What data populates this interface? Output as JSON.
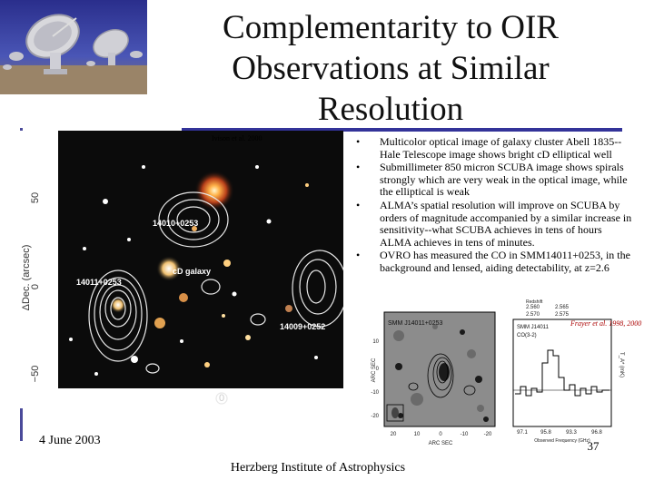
{
  "slide": {
    "title_lines": [
      "Complementarity to OIR",
      "Observations at Similar",
      "Resolution"
    ],
    "bullets": [
      "Multicolor optical image of galaxy cluster Abell 1835--Hale Telescope image shows bright cD elliptical well",
      "Submillimeter 850 micron SCUBA image shows spirals strongly which are very weak in the optical image, while the elliptical is weak",
      "ALMA’s spatial resolution will improve on SCUBA by orders of magnitude accompanied by a similar increase in sensitivity--what SCUBA achieves in tens of hours ALMA achieves in tens of minutes.",
      "OVRO has measured the CO in SMM14011+0253, in the background and lensed, aiding detectability, at z=2.6"
    ],
    "bullet_glyph": "•",
    "date": "4 June 2003",
    "footer": "Herzberg Institute of Astrophysics",
    "page_number": "37",
    "credit_left": "Ivison et al. 2000",
    "credit_right": "Frayer et al. 1998, 2000"
  },
  "left_image": {
    "y_axis_label": "ΔDec. (arcsec)",
    "y_ticks": [
      "50",
      "0",
      "−50"
    ],
    "x_ticks": [
      "0"
    ],
    "labels": [
      "14010+0253",
      "cD galaxy",
      "14011+0253",
      "14009+0252"
    ]
  },
  "right_image": {
    "ra_ticks": [
      "2.560",
      "2.565",
      "2.570",
      "2.575"
    ],
    "panel_label": "SMM J14011+0253",
    "y_axis_label": "ARC SEC",
    "x_axis_label": "ARC SEC",
    "y_ticks": [
      "10",
      "0",
      "-10",
      "-20"
    ],
    "x_ticks": [
      "20",
      "10",
      "0",
      "-10",
      "-20"
    ],
    "spectrum_title": "SMM J14011",
    "spectrum_line": "CO(3-2)",
    "spectrum_ylabel": "T_A* (mK)",
    "spectrum_xlabel": "Observed Frequency (GHz)",
    "spectrum_x_ticks": [
      "97.1",
      "95.8",
      "93.3",
      "96.8"
    ],
    "redshift_label": "Redshift"
  },
  "colors": {
    "rule": "#333399",
    "optical_background": "#0b0b0b",
    "contour": "#e8e8e8",
    "credit_right": "#aa0000"
  }
}
